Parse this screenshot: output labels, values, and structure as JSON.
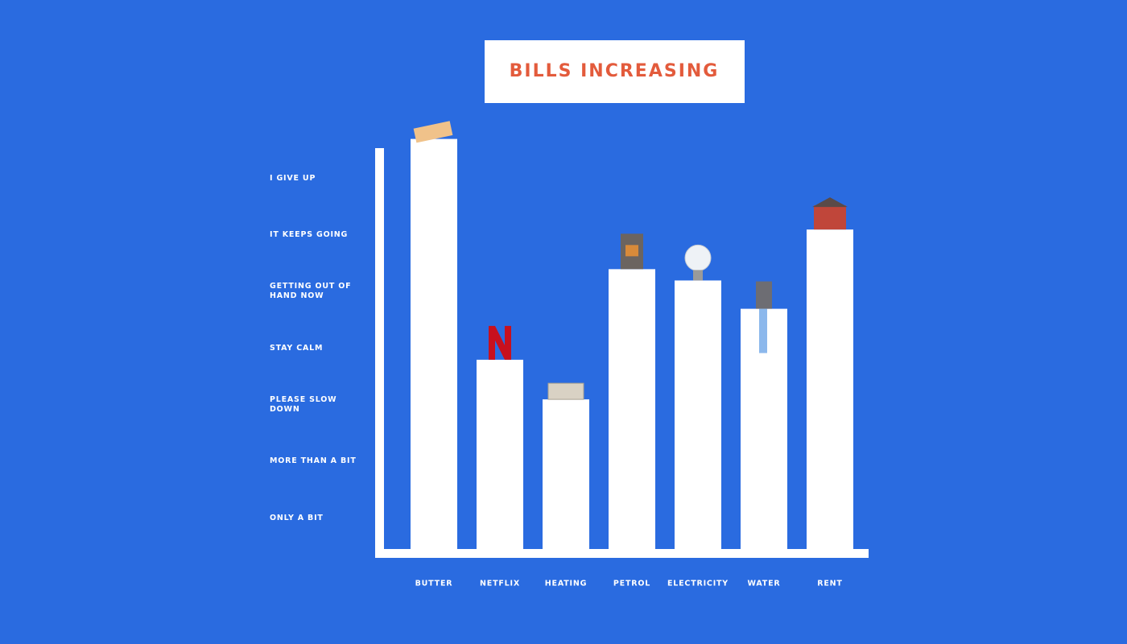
{
  "chart_data": {
    "type": "bar",
    "title": "BILLS INCREASING",
    "categories": [
      "BUTTER",
      "NETFLIX",
      "HEATING",
      "PETROL",
      "ELECTRICITY",
      "WATER",
      "RENT"
    ],
    "values": [
      7.7,
      3.8,
      3.1,
      5.4,
      5.2,
      4.7,
      6.1
    ],
    "color": "#ffffff",
    "ylim": [
      0.4,
      8
    ],
    "yticks": [
      {
        "value": 1,
        "label": "ONLY A BIT"
      },
      {
        "value": 2,
        "label": "MORE THAN A BIT"
      },
      {
        "value": 3,
        "label": "PLEASE SLOW DOWN"
      },
      {
        "value": 4,
        "label": "STAY CALM"
      },
      {
        "value": 5,
        "label": "GETTING OUT OF HAND NOW"
      },
      {
        "value": 6,
        "label": "IT KEEPS GOING"
      },
      {
        "value": 7,
        "label": "I GIVE UP"
      }
    ],
    "grid": false
  }
}
